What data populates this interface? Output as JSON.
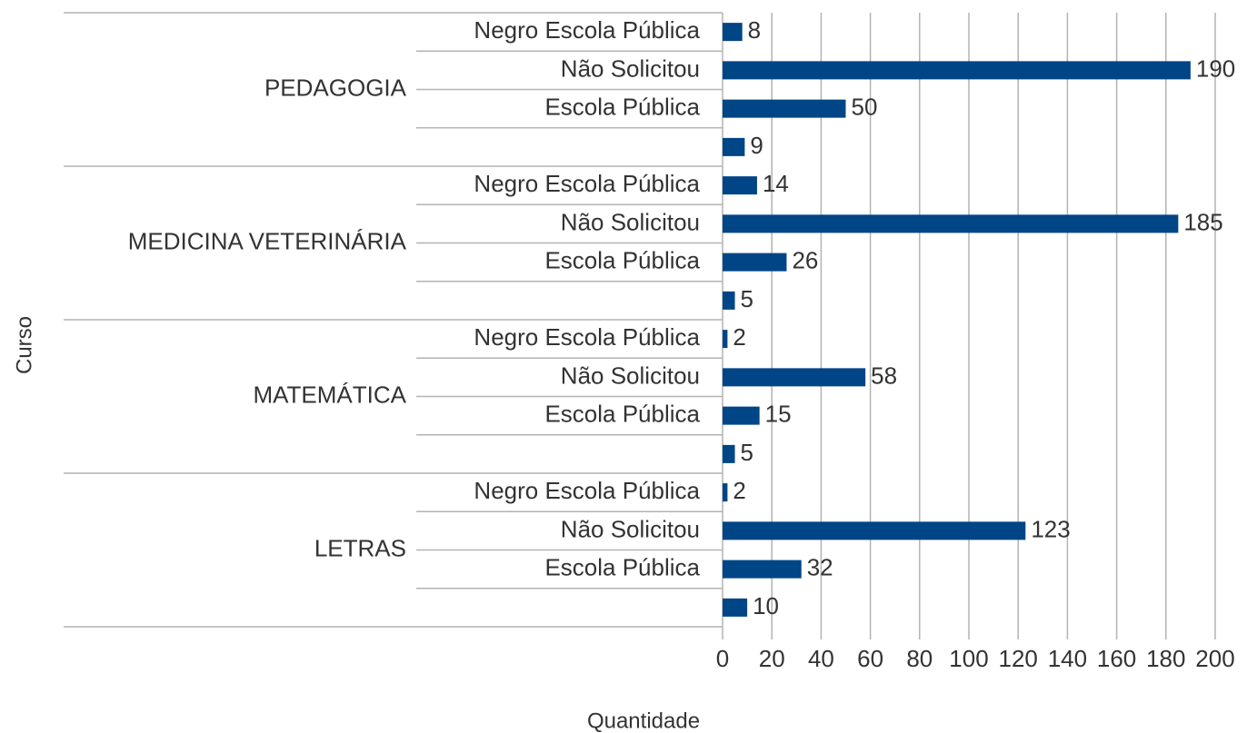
{
  "chart_data": {
    "type": "bar",
    "orientation": "horizontal",
    "y_axis_label": "Curso",
    "x_axis_label": "Quantidade",
    "groups": [
      "PEDAGOGIA",
      "MEDICINA VETERINÁRIA",
      "MATEMÁTICA",
      "LETRAS"
    ],
    "categories": [
      "Negro Escola Pública",
      "Não Solicitou",
      "Escola Pública",
      null,
      "Negro Escola Pública",
      "Não Solicitou",
      "Escola Pública",
      null,
      "Negro Escola Pública",
      "Não Solicitou",
      "Escola Pública",
      null,
      "Negro Escola Pública",
      "Não Solicitou",
      "Escola Pública",
      null
    ],
    "values": [
      8,
      190,
      50,
      9,
      14,
      185,
      26,
      5,
      2,
      58,
      15,
      5,
      2,
      123,
      32,
      10
    ],
    "color": "#004586",
    "xlim": [
      0,
      200
    ],
    "xticks": [
      0,
      20,
      40,
      60,
      80,
      100,
      120,
      140,
      160,
      180,
      200
    ],
    "grid": true
  }
}
